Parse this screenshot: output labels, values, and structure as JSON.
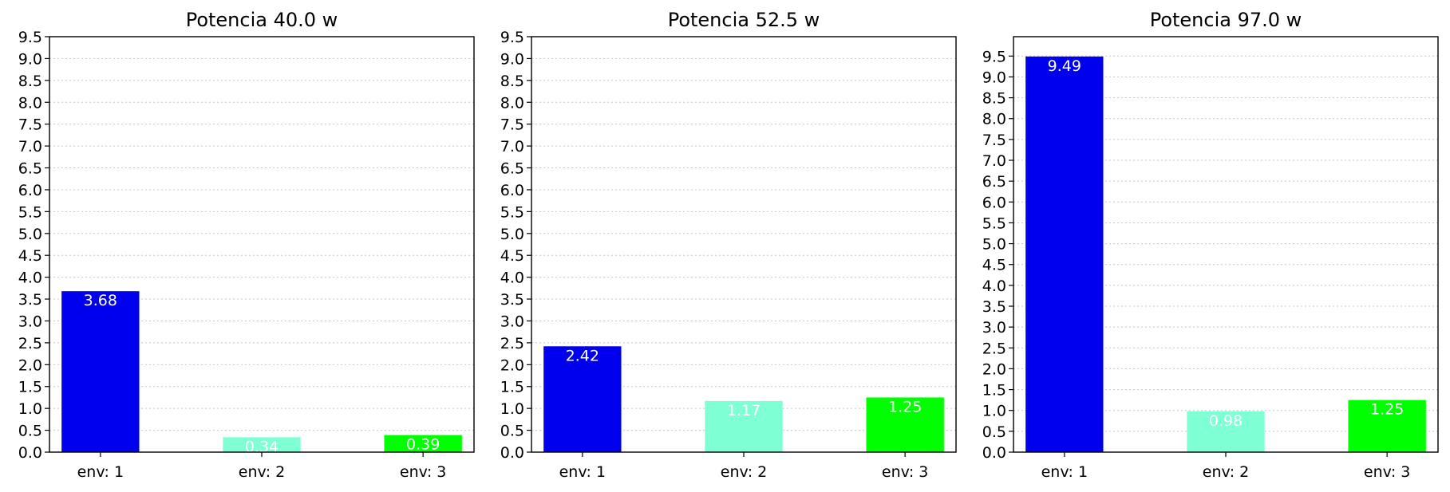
{
  "chart_data": [
    {
      "type": "bar",
      "title": "Potencia 40.0 w",
      "categories": [
        "env: 1",
        "env: 2",
        "env: 3"
      ],
      "values": [
        3.68,
        0.34,
        0.39
      ],
      "data_labels": [
        "3.68",
        "0.34",
        "0.39"
      ],
      "colors": [
        "#0000ee",
        "#7fffd4",
        "#00ff00"
      ],
      "ylim": [
        0,
        9.5
      ],
      "yticks": [
        "0.0",
        "0.5",
        "1.0",
        "1.5",
        "2.0",
        "2.5",
        "3.0",
        "3.5",
        "4.0",
        "4.5",
        "5.0",
        "5.5",
        "6.0",
        "6.5",
        "7.0",
        "7.5",
        "8.0",
        "8.5",
        "9.0",
        "9.5"
      ],
      "grid": "horizontal-dotted",
      "xlabel": "",
      "ylabel": ""
    },
    {
      "type": "bar",
      "title": "Potencia 52.5 w",
      "categories": [
        "env: 1",
        "env: 2",
        "env: 3"
      ],
      "values": [
        2.42,
        1.17,
        1.25
      ],
      "data_labels": [
        "2.42",
        "1.17",
        "1.25"
      ],
      "colors": [
        "#0000ee",
        "#7fffd4",
        "#00ff00"
      ],
      "ylim": [
        0,
        9.5
      ],
      "yticks": [
        "0.0",
        "0.5",
        "1.0",
        "1.5",
        "2.0",
        "2.5",
        "3.0",
        "3.5",
        "4.0",
        "4.5",
        "5.0",
        "5.5",
        "6.0",
        "6.5",
        "7.0",
        "7.5",
        "8.0",
        "8.5",
        "9.0",
        "9.5"
      ],
      "grid": "horizontal-dotted",
      "xlabel": "",
      "ylabel": ""
    },
    {
      "type": "bar",
      "title": "Potencia 97.0 w",
      "categories": [
        "env: 1",
        "env: 2",
        "env: 3"
      ],
      "values": [
        9.49,
        0.98,
        1.25
      ],
      "data_labels": [
        "9.49",
        "0.98",
        "1.25"
      ],
      "colors": [
        "#0000ee",
        "#7fffd4",
        "#00ff00"
      ],
      "ylim": [
        0,
        9.965
      ],
      "yticks": [
        "0.0",
        "0.5",
        "1.0",
        "1.5",
        "2.0",
        "2.5",
        "3.0",
        "3.5",
        "4.0",
        "4.5",
        "5.0",
        "5.5",
        "6.0",
        "6.5",
        "7.0",
        "7.5",
        "8.0",
        "8.5",
        "9.0",
        "9.5"
      ],
      "grid": "horizontal-dotted",
      "xlabel": "",
      "ylabel": ""
    }
  ]
}
